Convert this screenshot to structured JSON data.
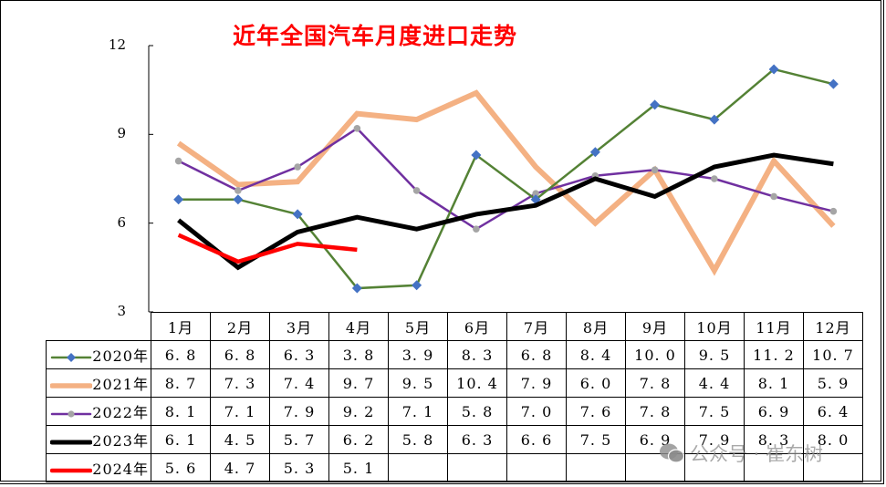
{
  "chart_data": {
    "type": "line",
    "title": "近年全国汽车月度进口走势",
    "xlabel": "",
    "ylabel": "",
    "ylim": [
      3,
      12
    ],
    "yticks": [
      3,
      6,
      9,
      12
    ],
    "grid": false,
    "legend_position": "data-table-left",
    "categories": [
      "1月",
      "2月",
      "3月",
      "4月",
      "5月",
      "6月",
      "7月",
      "8月",
      "9月",
      "10月",
      "11月",
      "12月"
    ],
    "series": [
      {
        "name": "2020年",
        "color": "#548235",
        "marker": "diamond",
        "marker_color": "#4472c4",
        "line_width": 2.5,
        "values": [
          6.8,
          6.8,
          6.3,
          3.8,
          3.9,
          8.3,
          6.8,
          8.4,
          10.0,
          9.5,
          11.2,
          10.7
        ],
        "labels": [
          "6.8",
          "6.8",
          "6.3",
          "3.8",
          "3.9",
          "8.3",
          "6.8",
          "8.4",
          "10.0",
          "9.5",
          "11.2",
          "10.7"
        ]
      },
      {
        "name": "2021年",
        "color": "#f4b183",
        "marker": "none",
        "line_width": 6,
        "values": [
          8.7,
          7.3,
          7.4,
          9.7,
          9.5,
          10.4,
          7.9,
          6.0,
          7.8,
          4.4,
          8.1,
          5.9
        ],
        "labels": [
          "8.7",
          "7.3",
          "7.4",
          "9.7",
          "9.5",
          "10.4",
          "7.9",
          "6.0",
          "7.8",
          "4.4",
          "8.1",
          "5.9"
        ]
      },
      {
        "name": "2022年",
        "color": "#7030a0",
        "marker": "circle",
        "marker_color": "#a5a5a5",
        "line_width": 2.5,
        "values": [
          8.1,
          7.1,
          7.9,
          9.2,
          7.1,
          5.8,
          7.0,
          7.6,
          7.8,
          7.5,
          6.9,
          6.4
        ],
        "labels": [
          "8.1",
          "7.1",
          "7.9",
          "9.2",
          "7.1",
          "5.8",
          "7.0",
          "7.6",
          "7.8",
          "7.5",
          "6.9",
          "6.4"
        ]
      },
      {
        "name": "2023年",
        "color": "#000000",
        "marker": "none",
        "line_width": 5,
        "values": [
          6.1,
          4.5,
          5.7,
          6.2,
          5.8,
          6.3,
          6.6,
          7.5,
          6.9,
          7.9,
          8.3,
          8.0
        ],
        "labels": [
          "6.1",
          "4.5",
          "5.7",
          "6.2",
          "5.8",
          "6.3",
          "6.6",
          "7.5",
          "6.9",
          "7.9",
          "8.3",
          "8.0"
        ]
      },
      {
        "name": "2024年",
        "color": "#ff0000",
        "marker": "none",
        "line_width": 4.5,
        "values": [
          5.6,
          4.7,
          5.3,
          5.1,
          null,
          null,
          null,
          null,
          null,
          null,
          null,
          null
        ],
        "labels": [
          "5.6",
          "4.7",
          "5.3",
          "5.1",
          "",
          "",
          "",
          "",
          "",
          "",
          "",
          ""
        ]
      }
    ]
  },
  "axis": {
    "y_ticks": [
      "12",
      "9",
      "6",
      "3"
    ]
  },
  "watermark": {
    "text": "公众号 · 崔东树",
    "icon": "wechat-icon"
  }
}
